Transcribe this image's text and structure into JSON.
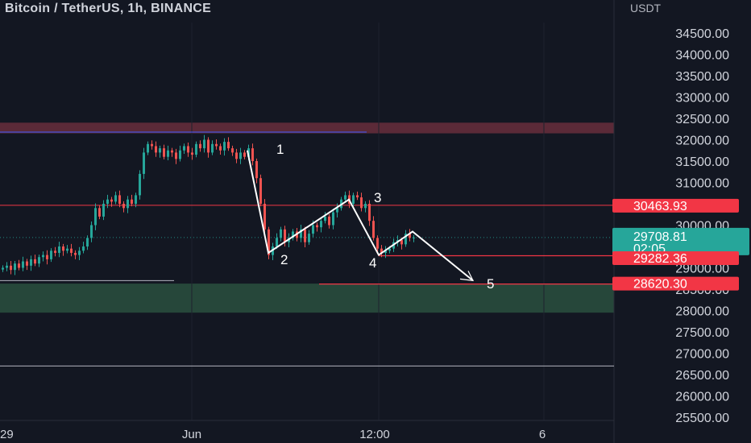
{
  "header": {
    "title": "Bitcoin / TetherUS, 1h, BINANCE",
    "unit": "USDT"
  },
  "colors": {
    "background": "#131722",
    "up": "#26a69a",
    "down": "#ef5350",
    "resistance_zone": "#5b2a38",
    "support_zone": "#26473a",
    "level_line": "#f23645",
    "price_tag": "#26a69a",
    "wave": "#ffffff"
  },
  "chart_data": {
    "type": "candlestick",
    "title": "Bitcoin / TetherUS, 1h, BINANCE",
    "ylabel": "USDT",
    "ylim": [
      25300,
      35000
    ],
    "y_ticks": [
      "34500.00",
      "34000.00",
      "33500.00",
      "33000.00",
      "32500.00",
      "32000.00",
      "31500.00",
      "31000.00",
      "30500.00",
      "30000.00",
      "29500.00",
      "29000.00",
      "28500.00",
      "28000.00",
      "27500.00",
      "27000.00",
      "26500.00",
      "26000.00",
      "25500.00"
    ],
    "x_ticks": [
      "29",
      "Jun",
      "12:00",
      "6"
    ],
    "price_tags": [
      {
        "value": "30463.93",
        "kind": "level"
      },
      {
        "value": "29708.81",
        "countdown": "02:05",
        "kind": "current"
      },
      {
        "value": "29282.36",
        "kind": "level"
      },
      {
        "value": "28620.30",
        "kind": "level"
      }
    ],
    "zones": [
      {
        "name": "resistance",
        "from": 32150,
        "to": 32400
      },
      {
        "name": "support",
        "from": 27950,
        "to": 28630
      }
    ],
    "horizontal_levels": [
      32180,
      30463.93,
      29282.36,
      28620.3,
      28700,
      26700
    ],
    "candles_approx_close": [
      29000,
      29050,
      28950,
      29100,
      29000,
      29150,
      29050,
      29200,
      29100,
      29250,
      29300,
      29200,
      29400,
      29350,
      29500,
      29400,
      29450,
      29350,
      29300,
      29400,
      29500,
      29700,
      30000,
      30400,
      30200,
      30500,
      30600,
      30550,
      30700,
      30500,
      30400,
      30600,
      30500,
      30700,
      31200,
      31700,
      31900,
      31850,
      31700,
      31800,
      31600,
      31750,
      31700,
      31550,
      31750,
      31850,
      31700,
      31650,
      31900,
      31800,
      32000,
      31700,
      31900,
      31850,
      31750,
      31950,
      31800,
      31700,
      31550,
      31700,
      31600,
      31800,
      31500,
      31100,
      30500,
      29900,
      29300,
      29500,
      29700,
      29900,
      29600,
      29700,
      29850,
      29700,
      29900,
      29600,
      29800,
      30000,
      29950,
      30100,
      30200,
      30000,
      30300,
      30400,
      30600,
      30700,
      30500,
      30700,
      30650,
      30400,
      30500,
      30100,
      29700,
      29450,
      29350,
      29400,
      29450,
      29600,
      29650,
      29550,
      29800,
      29700,
      29708.81
    ],
    "annotations": [
      "1",
      "2",
      "3",
      "4",
      "5"
    ],
    "wave_path": [
      [
        31750
      ],
      [
        29350
      ],
      [
        30600
      ],
      [
        29300
      ],
      [
        29850
      ],
      [
        28700
      ]
    ]
  }
}
